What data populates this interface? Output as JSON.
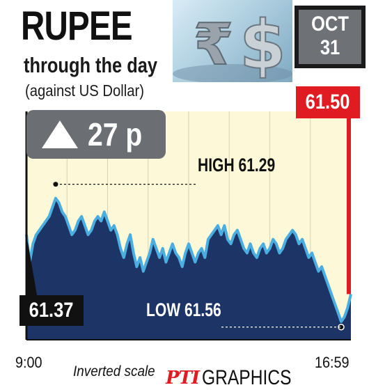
{
  "header": {
    "title": "RUPEE",
    "subtitle": "through the day",
    "note": "(against US Dollar)"
  },
  "date": {
    "month": "OCT",
    "day": "31"
  },
  "change": {
    "direction": "up",
    "value": "27 p",
    "icon": "up-triangle-icon"
  },
  "photo": {
    "symbols": [
      "₹",
      "$"
    ]
  },
  "chart_data": {
    "type": "area",
    "x_start_label": "9:00",
    "x_end_label": "16:59",
    "y_inverted": true,
    "ylim": [
      61.6,
      61.1
    ],
    "open": "61.37",
    "close": "61.50",
    "high_label": "HIGH 61.29",
    "low_label": "LOW 61.56",
    "scale_note": "Inverted scale",
    "x": [
      0,
      1,
      2,
      3,
      4,
      5,
      6,
      7,
      8,
      9,
      10,
      11,
      12,
      13,
      14,
      15,
      16,
      17,
      18,
      19,
      20,
      21,
      22,
      23,
      24,
      25,
      26,
      27,
      28,
      29,
      30,
      31,
      32,
      33,
      34,
      35,
      36,
      37,
      38,
      39,
      40,
      41,
      42,
      43,
      44,
      45,
      46,
      47,
      48,
      49,
      50,
      51,
      52,
      53,
      54,
      55,
      56,
      57,
      58,
      59,
      60,
      61,
      62,
      63,
      64,
      65,
      66,
      67,
      68,
      69,
      70,
      71,
      72,
      73,
      74,
      75,
      76,
      77,
      78,
      79,
      80,
      81,
      82,
      83,
      84,
      85,
      86,
      87,
      88,
      89,
      90,
      91,
      92,
      93,
      94,
      95,
      96,
      97,
      98,
      99,
      100
    ],
    "values": [
      61.37,
      61.43,
      61.39,
      61.37,
      61.36,
      61.35,
      61.34,
      61.33,
      61.31,
      61.29,
      61.3,
      61.32,
      61.33,
      61.35,
      61.37,
      61.36,
      61.34,
      61.33,
      61.35,
      61.37,
      61.36,
      61.34,
      61.33,
      61.34,
      61.32,
      61.34,
      61.36,
      61.35,
      61.37,
      61.4,
      61.42,
      61.39,
      61.37,
      61.41,
      61.44,
      61.42,
      61.45,
      61.43,
      61.41,
      61.38,
      61.4,
      61.42,
      61.4,
      61.43,
      61.41,
      61.39,
      61.41,
      61.42,
      61.44,
      61.41,
      61.39,
      61.41,
      61.43,
      61.41,
      61.4,
      61.42,
      61.38,
      61.37,
      61.36,
      61.35,
      61.37,
      61.35,
      61.38,
      61.39,
      61.37,
      61.36,
      61.38,
      61.4,
      61.41,
      61.39,
      61.41,
      61.42,
      61.4,
      61.39,
      61.41,
      61.4,
      61.38,
      61.39,
      61.41,
      61.4,
      61.38,
      61.37,
      61.36,
      61.37,
      61.39,
      61.38,
      61.4,
      61.42,
      61.41,
      61.43,
      61.45,
      61.44,
      61.46,
      61.48,
      61.5,
      61.52,
      61.54,
      61.56,
      61.55,
      61.53,
      61.5
    ],
    "colors": {
      "fill": "#1d3467",
      "line": "#4aaee0",
      "background": "#fdf8d8",
      "accent": "#e11b22"
    }
  },
  "footer": {
    "credit_logo": "PTI",
    "credit_word": "GRAPHICS"
  }
}
